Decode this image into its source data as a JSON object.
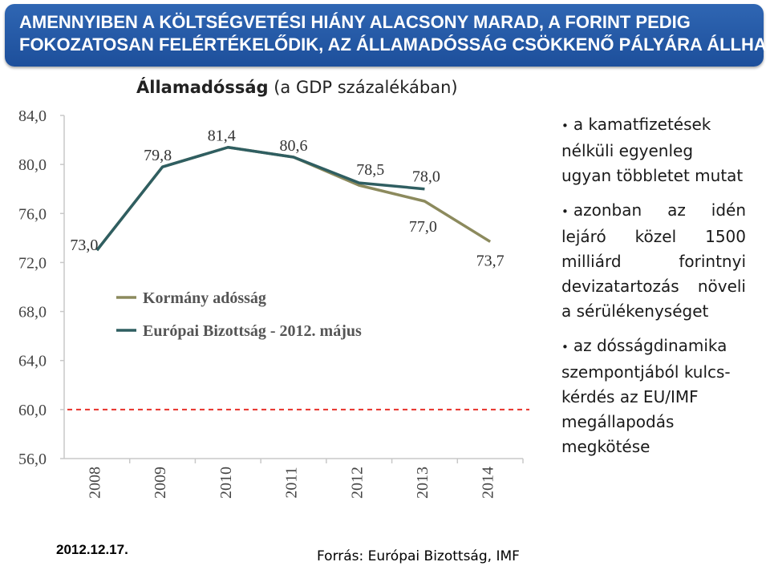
{
  "header": {
    "line1": "AMENNYIBEN A KÖLTSÉGVETÉSI HIÁNY ALACSONY MARAD, A FORINT PEDIG",
    "line2": "FOKOZATOSAN FELÉRTÉKELŐDIK, AZ ÁLLAMADÓSSÁG CSÖKKENŐ PÁLYÁRA ÁLLHAT"
  },
  "chart_title": {
    "bold": "Államadósság",
    "rest": " (a GDP százalékában)"
  },
  "chart_data": {
    "type": "line",
    "categories": [
      "2008",
      "2009",
      "2010",
      "2011",
      "2012",
      "2013",
      "2014"
    ],
    "ylim": [
      56,
      84
    ],
    "yticks": [
      "56,0",
      "60,0",
      "64,0",
      "68,0",
      "72,0",
      "76,0",
      "80,0",
      "84,0"
    ],
    "reference_line": {
      "value": 60,
      "color": "#e8312a",
      "style": "dashed"
    },
    "series": [
      {
        "name": "Kormány adósság",
        "color": "#8c8a5d",
        "values": [
          73.0,
          79.8,
          81.4,
          80.6,
          78.3,
          77.0,
          73.7
        ],
        "labels": [
          null,
          null,
          null,
          null,
          null,
          "77,0",
          "73,7"
        ]
      },
      {
        "name": "Európai Bizottság - 2012. május",
        "color": "#2f5e61",
        "values": [
          73.0,
          79.8,
          81.4,
          80.6,
          78.5,
          78.0,
          null
        ],
        "labels": [
          "73,0",
          "79,8",
          "81,4",
          "80,6",
          "78,5",
          "78,0",
          null
        ]
      }
    ],
    "legend_position": "middle-left",
    "grid": false
  },
  "bullets": [
    "a kamatfizetések nélküli egyenleg ugyan többletet mutat",
    "azonban az idén lejáró közel 1500 milliárd forintnyi devizatartozás növeli a sérülékenységet",
    "az dósságdinamika szempontjából kulcs-kérdés az EU/IMF megállapodás megkötése"
  ],
  "footer": {
    "date": "2012.12.17.",
    "source": "Forrás: Európai Bizottság, IMF"
  }
}
